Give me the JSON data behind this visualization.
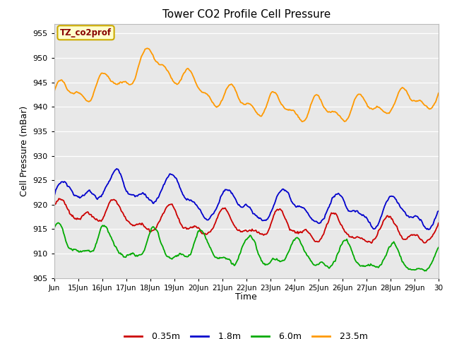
{
  "title": "Tower CO2 Profile Cell Pressure",
  "xlabel": "Time",
  "ylabel": "Cell Pressure (mBar)",
  "ylim": [
    905,
    957
  ],
  "yticks": [
    905,
    910,
    915,
    920,
    925,
    930,
    935,
    940,
    945,
    950,
    955
  ],
  "annotation_text": "TZ_co2prof",
  "annotation_color": "#880000",
  "annotation_bg": "#ffffcc",
  "annotation_border": "#ccaa00",
  "colors": {
    "0.35m": "#cc0000",
    "1.8m": "#0000cc",
    "6.0m": "#00aa00",
    "23.5m": "#ff9900"
  },
  "legend_labels": [
    "0.35m",
    "1.8m",
    "6.0m",
    "23.5m"
  ],
  "fig_bg": "#ffffff",
  "axes_bg": "#e8e8e8",
  "grid_color": "#ffffff",
  "n_points": 500,
  "x_start": 14,
  "x_end": 30,
  "xtick_positions": [
    14,
    15,
    16,
    17,
    18,
    19,
    20,
    21,
    22,
    23,
    24,
    25,
    26,
    27,
    28,
    29,
    30
  ],
  "xtick_labels": [
    "Jun",
    "15Jun",
    "16Jun",
    "17Jun",
    "18Jun",
    "19Jun",
    "20Jun",
    "21Jun",
    "22Jun",
    "23Jun",
    "24Jun",
    "25Jun",
    "26Jun",
    "27Jun",
    "28Jun",
    "29Jun",
    "30"
  ]
}
